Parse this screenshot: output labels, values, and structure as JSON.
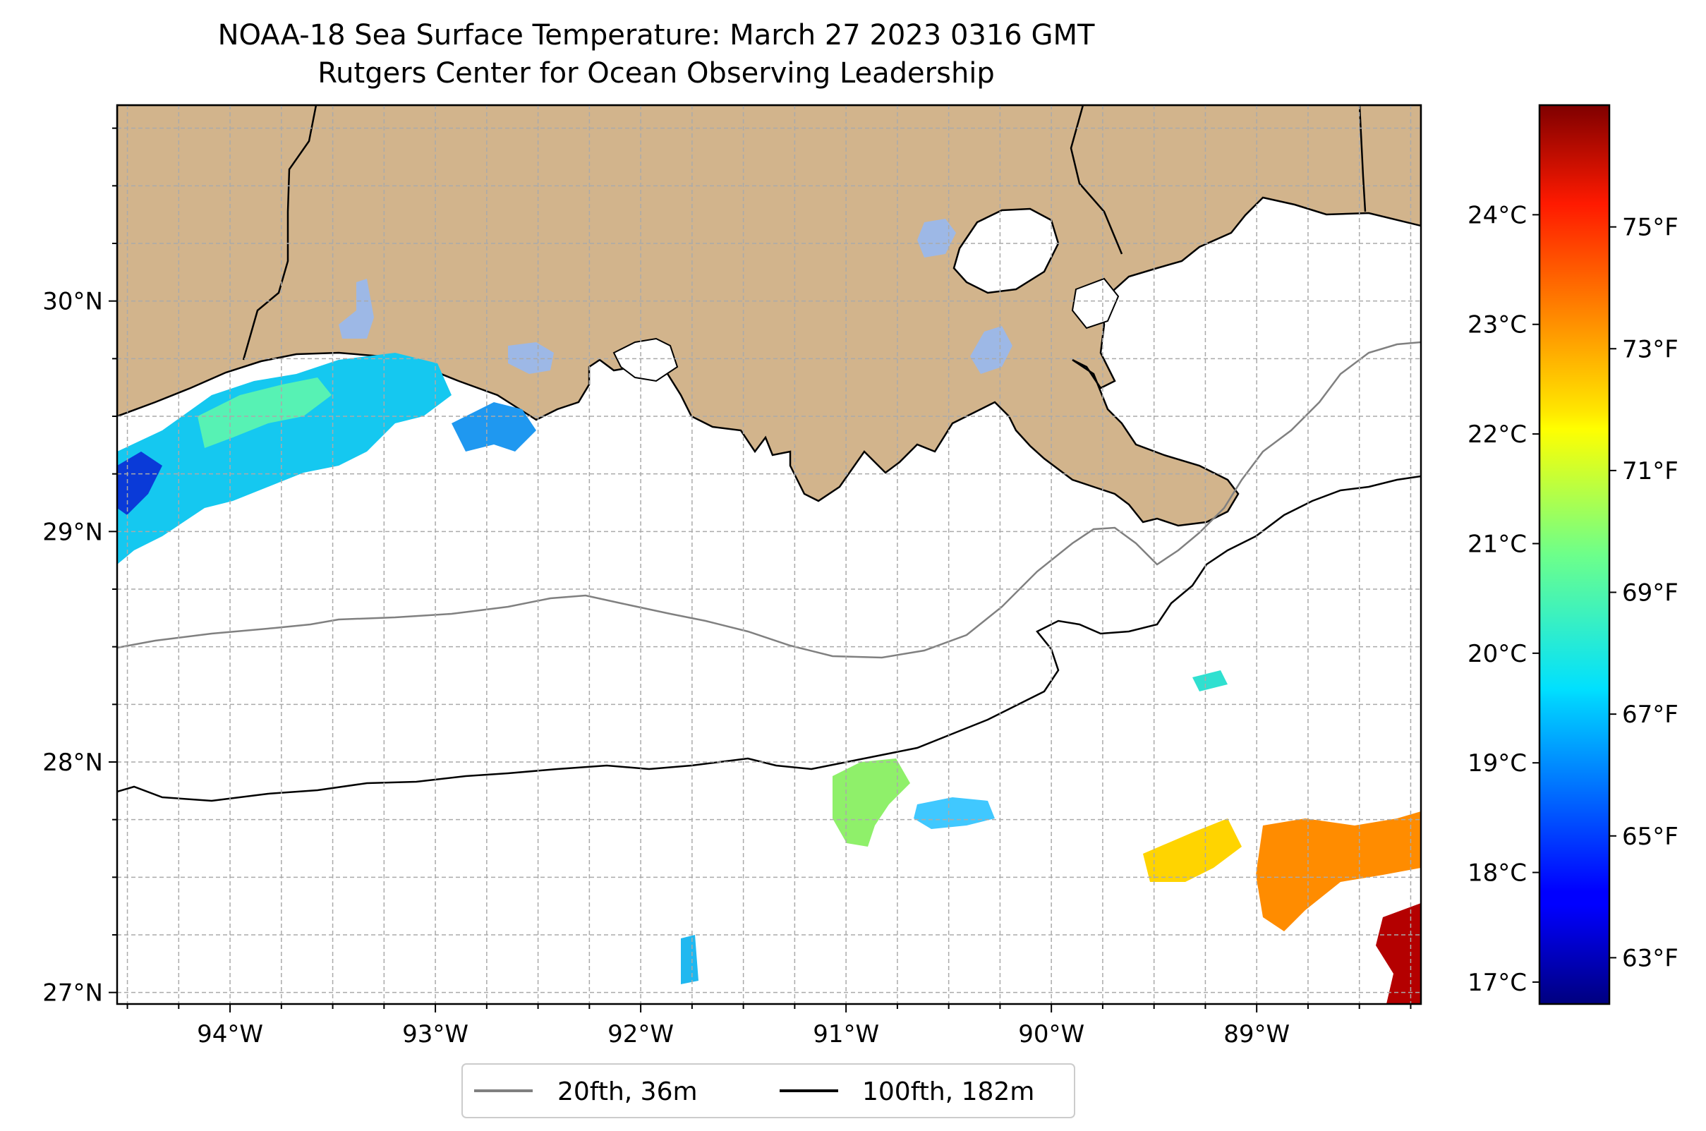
{
  "title": {
    "line1": "NOAA-18 Sea Surface Temperature: March 27 2023 0316 GMT",
    "line2": "Rutgers Center for Ocean Observing Leadership"
  },
  "map": {
    "lon_range": [
      -94.55,
      -88.2
    ],
    "lat_range": [
      26.95,
      30.85
    ],
    "grid": true,
    "lon_ticks": [
      {
        "value": -94,
        "label": "94°W"
      },
      {
        "value": -93,
        "label": "93°W"
      },
      {
        "value": -92,
        "label": "92°W"
      },
      {
        "value": -91,
        "label": "91°W"
      },
      {
        "value": -90,
        "label": "90°W"
      },
      {
        "value": -89,
        "label": "89°W"
      }
    ],
    "lat_ticks": [
      {
        "value": 27,
        "label": "27°N"
      },
      {
        "value": 28,
        "label": "28°N"
      },
      {
        "value": 29,
        "label": "29°N"
      },
      {
        "value": 30,
        "label": "30°N"
      }
    ],
    "land_color": "#d2b48c",
    "lake_color": "#9db8e6"
  },
  "legend": {
    "placement": "bottom-center",
    "items": [
      {
        "label": "20fth, 36m",
        "color": "#808080"
      },
      {
        "label": "100fth, 182m",
        "color": "#000000"
      }
    ]
  },
  "colorbar": {
    "colormap": "jet",
    "range_c": [
      16.8,
      25.0
    ],
    "celsius_ticks": [
      "17°C",
      "18°C",
      "19°C",
      "20°C",
      "21°C",
      "22°C",
      "23°C",
      "24°C"
    ],
    "fahrenheit_ticks": [
      "63°F",
      "65°F",
      "67°F",
      "69°F",
      "71°F",
      "73°F",
      "75°F"
    ]
  }
}
